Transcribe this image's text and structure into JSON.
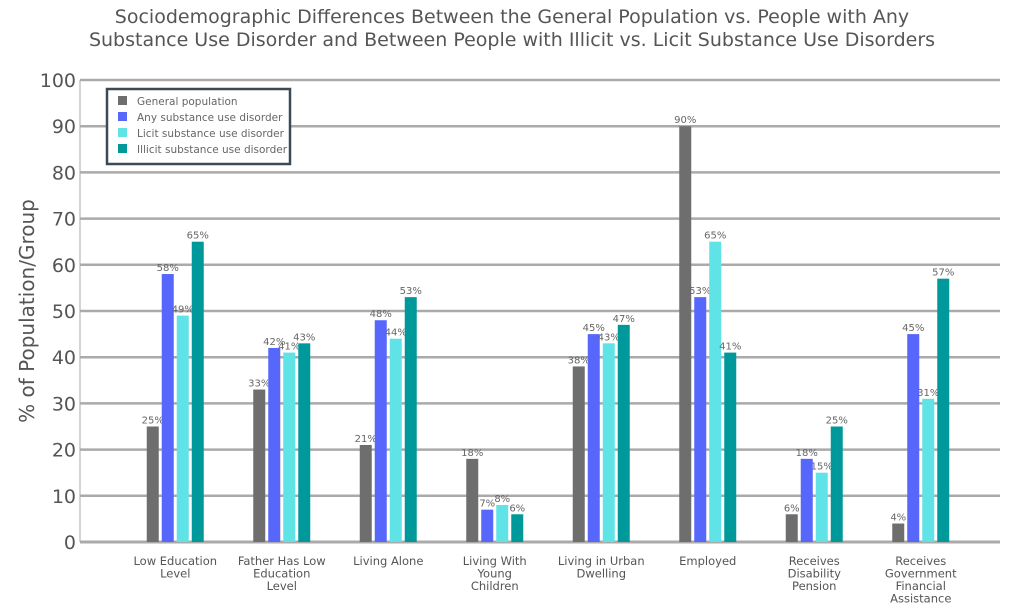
{
  "chart_data": {
    "type": "bar",
    "title_lines": [
      "Sociodemographic Differences Between the General Population vs. People with Any",
      "Substance Use Disorder and Between People with Illicit vs. Licit Substance Use Disorders"
    ],
    "ylabel": "% of Population/Group",
    "xlabel": "",
    "ylim": [
      0,
      100
    ],
    "yticks": [
      0,
      10,
      20,
      30,
      40,
      50,
      60,
      70,
      80,
      90,
      100
    ],
    "grid": true,
    "legend_position": "top-left",
    "categories": [
      [
        "Low Education",
        "Level"
      ],
      [
        "Father Has Low",
        "Education",
        "Level"
      ],
      [
        "Living Alone"
      ],
      [
        "Living With",
        "Young",
        "Children"
      ],
      [
        "Living in Urban",
        "Dwelling"
      ],
      [
        "Employed"
      ],
      [
        "Receives",
        "Disability",
        "Pension"
      ],
      [
        "Receives",
        "Government",
        "Financial",
        "Assistance"
      ]
    ],
    "series": [
      {
        "name": "General population",
        "color": "#6e6e6e",
        "values": [
          25,
          33,
          21,
          18,
          38,
          90,
          6,
          4
        ]
      },
      {
        "name": "Any substance use disorder",
        "color": "#5767fb",
        "values": [
          58,
          42,
          48,
          7,
          45,
          53,
          18,
          45
        ]
      },
      {
        "name": "Licit substance use disorder",
        "color": "#5fe3e6",
        "values": [
          49,
          41,
          44,
          8,
          43,
          65,
          15,
          31
        ]
      },
      {
        "name": "Illicit substance use disorder",
        "color": "#00999b",
        "values": [
          65,
          43,
          53,
          6,
          47,
          41,
          25,
          57
        ]
      }
    ],
    "value_suffix": "%"
  }
}
